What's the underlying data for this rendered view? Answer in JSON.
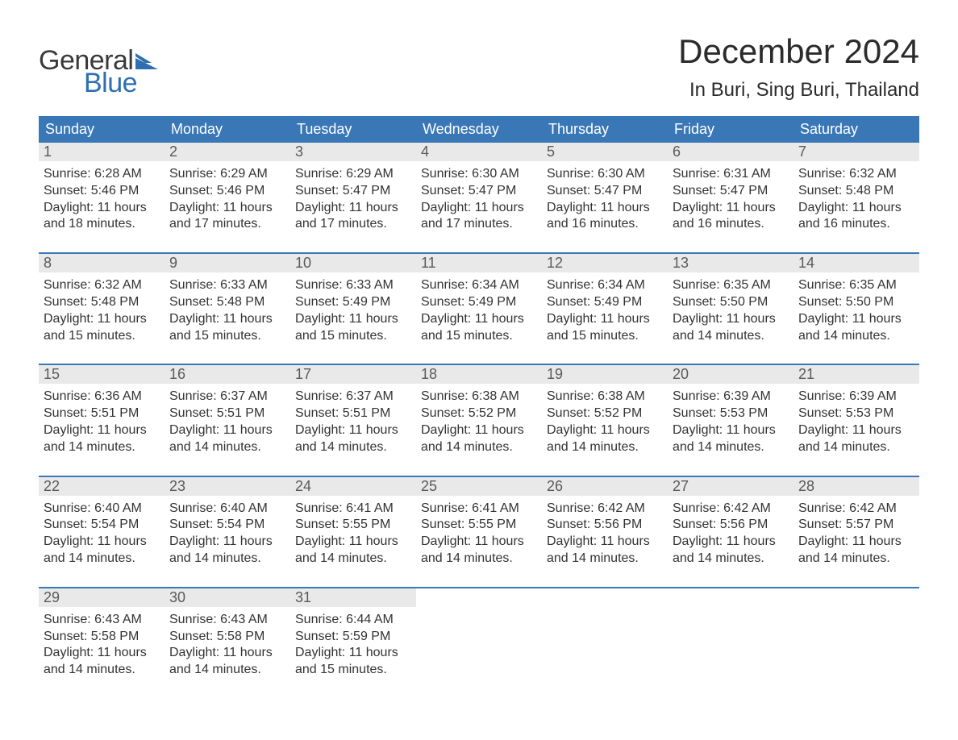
{
  "logo": {
    "top": "General",
    "bottom": "Blue",
    "flag_color": "#2f6fb0"
  },
  "title": "December 2024",
  "location": "In Buri, Sing Buri, Thailand",
  "colors": {
    "header_bg": "#3a77b7",
    "header_text": "#ffffff",
    "daynum_bg": "#e9e9e9",
    "daynum_text": "#5a5a5a",
    "body_text": "#333333",
    "rule": "#3a77b7",
    "page_bg": "#ffffff"
  },
  "day_names": [
    "Sunday",
    "Monday",
    "Tuesday",
    "Wednesday",
    "Thursday",
    "Friday",
    "Saturday"
  ],
  "labels": {
    "sunrise": "Sunrise:",
    "sunset": "Sunset:",
    "daylight": "Daylight:"
  },
  "weeks": [
    [
      {
        "n": "1",
        "sr": "6:28 AM",
        "ss": "5:46 PM",
        "dl1": "11 hours",
        "dl2": "and 18 minutes."
      },
      {
        "n": "2",
        "sr": "6:29 AM",
        "ss": "5:46 PM",
        "dl1": "11 hours",
        "dl2": "and 17 minutes."
      },
      {
        "n": "3",
        "sr": "6:29 AM",
        "ss": "5:47 PM",
        "dl1": "11 hours",
        "dl2": "and 17 minutes."
      },
      {
        "n": "4",
        "sr": "6:30 AM",
        "ss": "5:47 PM",
        "dl1": "11 hours",
        "dl2": "and 17 minutes."
      },
      {
        "n": "5",
        "sr": "6:30 AM",
        "ss": "5:47 PM",
        "dl1": "11 hours",
        "dl2": "and 16 minutes."
      },
      {
        "n": "6",
        "sr": "6:31 AM",
        "ss": "5:47 PM",
        "dl1": "11 hours",
        "dl2": "and 16 minutes."
      },
      {
        "n": "7",
        "sr": "6:32 AM",
        "ss": "5:48 PM",
        "dl1": "11 hours",
        "dl2": "and 16 minutes."
      }
    ],
    [
      {
        "n": "8",
        "sr": "6:32 AM",
        "ss": "5:48 PM",
        "dl1": "11 hours",
        "dl2": "and 15 minutes."
      },
      {
        "n": "9",
        "sr": "6:33 AM",
        "ss": "5:48 PM",
        "dl1": "11 hours",
        "dl2": "and 15 minutes."
      },
      {
        "n": "10",
        "sr": "6:33 AM",
        "ss": "5:49 PM",
        "dl1": "11 hours",
        "dl2": "and 15 minutes."
      },
      {
        "n": "11",
        "sr": "6:34 AM",
        "ss": "5:49 PM",
        "dl1": "11 hours",
        "dl2": "and 15 minutes."
      },
      {
        "n": "12",
        "sr": "6:34 AM",
        "ss": "5:49 PM",
        "dl1": "11 hours",
        "dl2": "and 15 minutes."
      },
      {
        "n": "13",
        "sr": "6:35 AM",
        "ss": "5:50 PM",
        "dl1": "11 hours",
        "dl2": "and 14 minutes."
      },
      {
        "n": "14",
        "sr": "6:35 AM",
        "ss": "5:50 PM",
        "dl1": "11 hours",
        "dl2": "and 14 minutes."
      }
    ],
    [
      {
        "n": "15",
        "sr": "6:36 AM",
        "ss": "5:51 PM",
        "dl1": "11 hours",
        "dl2": "and 14 minutes."
      },
      {
        "n": "16",
        "sr": "6:37 AM",
        "ss": "5:51 PM",
        "dl1": "11 hours",
        "dl2": "and 14 minutes."
      },
      {
        "n": "17",
        "sr": "6:37 AM",
        "ss": "5:51 PM",
        "dl1": "11 hours",
        "dl2": "and 14 minutes."
      },
      {
        "n": "18",
        "sr": "6:38 AM",
        "ss": "5:52 PM",
        "dl1": "11 hours",
        "dl2": "and 14 minutes."
      },
      {
        "n": "19",
        "sr": "6:38 AM",
        "ss": "5:52 PM",
        "dl1": "11 hours",
        "dl2": "and 14 minutes."
      },
      {
        "n": "20",
        "sr": "6:39 AM",
        "ss": "5:53 PM",
        "dl1": "11 hours",
        "dl2": "and 14 minutes."
      },
      {
        "n": "21",
        "sr": "6:39 AM",
        "ss": "5:53 PM",
        "dl1": "11 hours",
        "dl2": "and 14 minutes."
      }
    ],
    [
      {
        "n": "22",
        "sr": "6:40 AM",
        "ss": "5:54 PM",
        "dl1": "11 hours",
        "dl2": "and 14 minutes."
      },
      {
        "n": "23",
        "sr": "6:40 AM",
        "ss": "5:54 PM",
        "dl1": "11 hours",
        "dl2": "and 14 minutes."
      },
      {
        "n": "24",
        "sr": "6:41 AM",
        "ss": "5:55 PM",
        "dl1": "11 hours",
        "dl2": "and 14 minutes."
      },
      {
        "n": "25",
        "sr": "6:41 AM",
        "ss": "5:55 PM",
        "dl1": "11 hours",
        "dl2": "and 14 minutes."
      },
      {
        "n": "26",
        "sr": "6:42 AM",
        "ss": "5:56 PM",
        "dl1": "11 hours",
        "dl2": "and 14 minutes."
      },
      {
        "n": "27",
        "sr": "6:42 AM",
        "ss": "5:56 PM",
        "dl1": "11 hours",
        "dl2": "and 14 minutes."
      },
      {
        "n": "28",
        "sr": "6:42 AM",
        "ss": "5:57 PM",
        "dl1": "11 hours",
        "dl2": "and 14 minutes."
      }
    ],
    [
      {
        "n": "29",
        "sr": "6:43 AM",
        "ss": "5:58 PM",
        "dl1": "11 hours",
        "dl2": "and 14 minutes."
      },
      {
        "n": "30",
        "sr": "6:43 AM",
        "ss": "5:58 PM",
        "dl1": "11 hours",
        "dl2": "and 14 minutes."
      },
      {
        "n": "31",
        "sr": "6:44 AM",
        "ss": "5:59 PM",
        "dl1": "11 hours",
        "dl2": "and 15 minutes."
      },
      null,
      null,
      null,
      null
    ]
  ]
}
